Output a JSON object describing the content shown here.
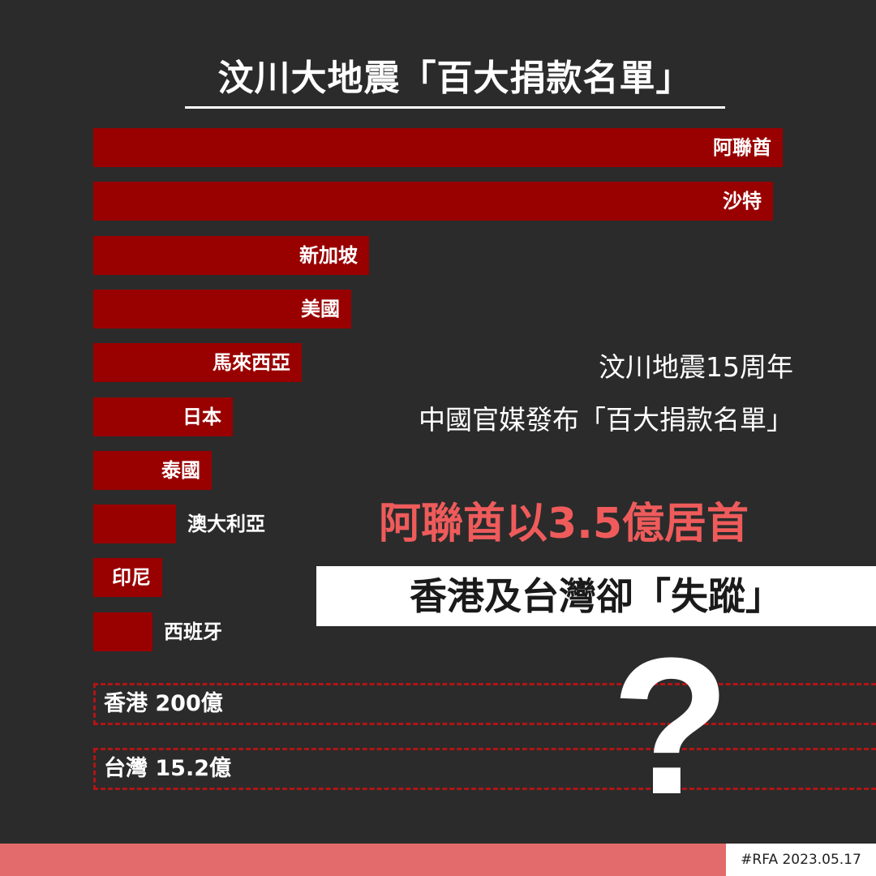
{
  "title": "汶川大地震「百大捐款名單」",
  "chart_data": {
    "type": "bar",
    "orientation": "horizontal",
    "title": "汶川大地震「百大捐款名單」",
    "categories": [
      "阿聯酋",
      "沙特",
      "新加坡",
      "美國",
      "馬來西亞",
      "日本",
      "泰國",
      "澳大利亞",
      "印尼",
      "西班牙"
    ],
    "values": [
      3.5,
      3.45,
      1.4,
      1.31,
      1.06,
      0.71,
      0.6,
      0.42,
      0.35,
      0.3
    ],
    "axis_visible": false,
    "grid": false,
    "bar_color": "#990000"
  },
  "subtitle": {
    "line1": "汶川地震15周年",
    "line2": "中國官媒發布「百大捐款名單」"
  },
  "headline": "阿聯酋以3.5億居首",
  "callout": "香港及台灣卻「失蹤」",
  "missing": [
    {
      "label": "香港  200億"
    },
    {
      "label": "台灣  15.2億"
    }
  ],
  "question_mark": "?",
  "footer": {
    "tag": "#RFA  2023.05.17"
  },
  "colors": {
    "background": "#2b2b2b",
    "bar": "#990000",
    "headline": "#ef5b5b",
    "footer_bar": "#e46b6b",
    "dashed_outline": "#b01515"
  }
}
